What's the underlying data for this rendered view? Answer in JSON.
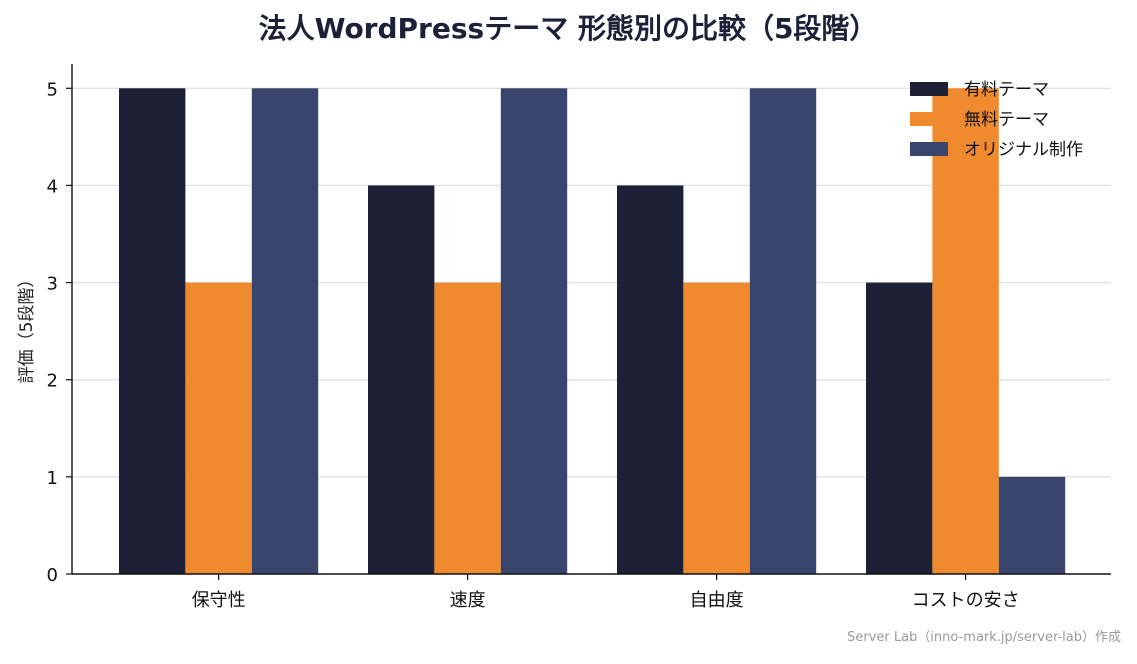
{
  "chart_data": {
    "type": "bar",
    "title": "法人WordPressテーマ 形態別の比較（5段階）",
    "xlabel": "",
    "ylabel": "評価（5段階）",
    "ylim": [
      0,
      5.25
    ],
    "yticks": [
      0,
      1,
      2,
      3,
      4,
      5
    ],
    "grid": "horizontal",
    "legend_position": "top-right",
    "categories": [
      "保守性",
      "速度",
      "自由度",
      "コストの安さ"
    ],
    "series": [
      {
        "name": "有料テーマ",
        "color": "#1c2138",
        "values": [
          5,
          4,
          4,
          3
        ]
      },
      {
        "name": "無料テーマ",
        "color": "#ef8a2f",
        "values": [
          3,
          3,
          3,
          5
        ]
      },
      {
        "name": "オリジナル制作",
        "color": "#3a456e",
        "values": [
          5,
          5,
          5,
          1
        ]
      }
    ]
  },
  "footer": {
    "source": "Server Lab（inno-mark.jp/server-lab）作成"
  }
}
